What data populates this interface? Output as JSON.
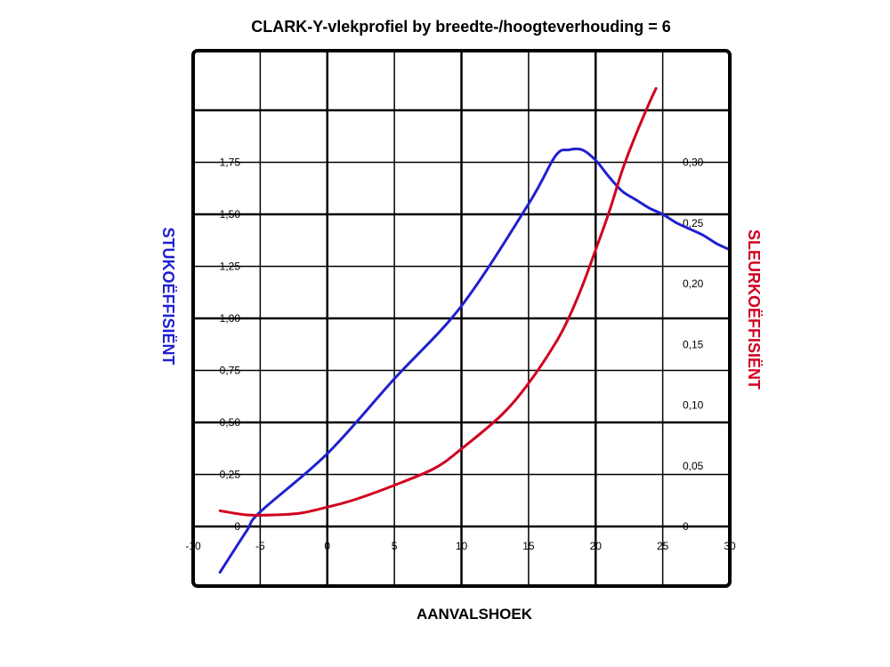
{
  "chart_data": {
    "type": "line",
    "title": "CLARK-Y-vlekprofiel by breedte-/hoogteverhouding = 6",
    "xlabel": "AANVALSHOEK",
    "ylabel_left": "STUKOËFFISIËNT",
    "ylabel_right": "SLEURKOËFFISIËNT",
    "xlim": [
      -10,
      30
    ],
    "ylim_left": [
      0,
      2.0
    ],
    "ylim_right": [
      0,
      0.343
    ],
    "x_ticks": [
      "-10",
      "-5",
      "0",
      "5",
      "10",
      "15",
      "20",
      "25",
      "30"
    ],
    "y_ticks_left": [
      "0",
      "0,25",
      "0,50",
      "0,75",
      "1,00",
      "1,25",
      "1,50",
      "1,75"
    ],
    "y_ticks_right": [
      "0",
      "0,05",
      "0,10",
      "0,15",
      "0,20",
      "0,25",
      "0,30"
    ],
    "colors": {
      "lift": "#2020d0",
      "drag": "#d00020",
      "grid": "#000000"
    },
    "series": [
      {
        "axis": "left",
        "color": "#2020d0",
        "points": [
          [
            -8,
            -0.22
          ],
          [
            -6,
            -0.02
          ],
          [
            -5,
            0.07
          ],
          [
            0,
            0.35
          ],
          [
            5,
            0.71
          ],
          [
            10,
            1.06
          ],
          [
            15,
            1.55
          ],
          [
            17,
            1.78
          ],
          [
            18,
            1.81
          ],
          [
            19,
            1.81
          ],
          [
            20,
            1.76
          ],
          [
            21,
            1.68
          ],
          [
            22,
            1.61
          ],
          [
            23,
            1.57
          ],
          [
            24,
            1.53
          ],
          [
            25,
            1.5
          ],
          [
            26,
            1.46
          ],
          [
            27,
            1.43
          ],
          [
            28,
            1.4
          ],
          [
            29,
            1.36
          ],
          [
            30,
            1.33
          ]
        ]
      },
      {
        "axis": "right",
        "color": "#d00020",
        "points": [
          [
            -8,
            0.013
          ],
          [
            -6,
            0.0095
          ],
          [
            -4,
            0.0095
          ],
          [
            -2,
            0.011
          ],
          [
            0,
            0.016
          ],
          [
            2,
            0.022
          ],
          [
            5,
            0.034
          ],
          [
            8,
            0.048
          ],
          [
            10,
            0.064
          ],
          [
            13,
            0.092
          ],
          [
            15,
            0.118
          ],
          [
            17,
            0.151
          ],
          [
            18,
            0.172
          ],
          [
            19,
            0.198
          ],
          [
            20,
            0.228
          ],
          [
            21,
            0.259
          ],
          [
            22,
            0.294
          ],
          [
            23,
            0.323
          ],
          [
            24,
            0.349
          ],
          [
            24.5,
            0.361
          ]
        ]
      }
    ]
  }
}
